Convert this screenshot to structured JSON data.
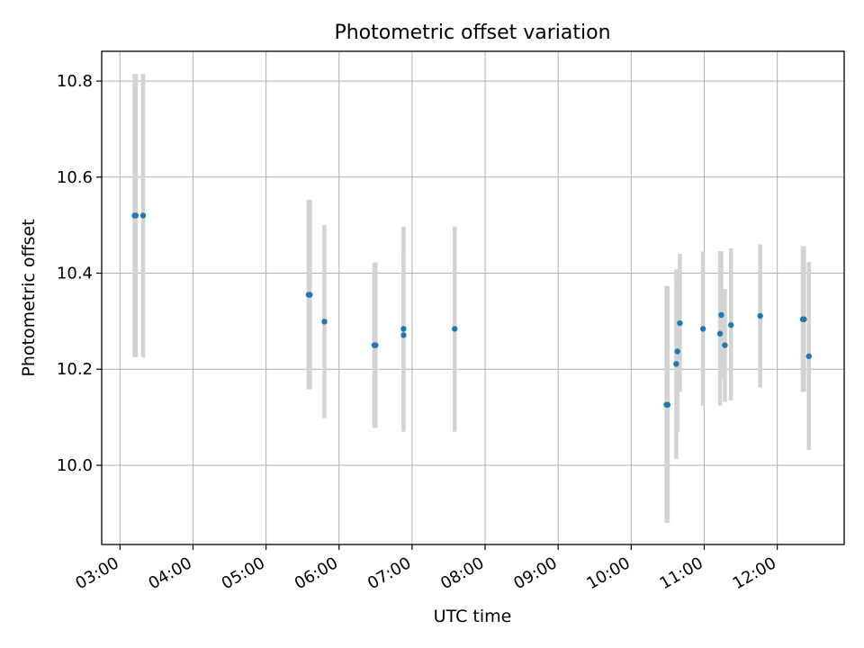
{
  "chart_data": {
    "type": "scatter",
    "title": "Photometric offset variation",
    "xlabel": "UTC time",
    "ylabel": "Photometric offset",
    "grid": true,
    "xlim": [
      "02:45",
      "12:55"
    ],
    "ylim": [
      9.835,
      10.862
    ],
    "xticks": [
      "03:00",
      "04:00",
      "05:00",
      "06:00",
      "07:00",
      "08:00",
      "09:00",
      "10:00",
      "11:00",
      "12:00"
    ],
    "yticks": [
      10.0,
      10.2,
      10.4,
      10.6,
      10.8
    ],
    "errorbar_color": "#d3d3d3",
    "marker_color": "#1f77b4",
    "points": [
      {
        "x": "03:12",
        "y": 10.52,
        "low": 10.225,
        "high": 10.815
      },
      {
        "x": "03:13",
        "y": 10.52,
        "low": 10.225,
        "high": 10.815
      },
      {
        "x": "03:19",
        "y": 10.52,
        "low": 10.225,
        "high": 10.815
      },
      {
        "x": "05:35",
        "y": 10.355,
        "low": 10.158,
        "high": 10.553
      },
      {
        "x": "05:36",
        "y": 10.355,
        "low": 10.158,
        "high": 10.553
      },
      {
        "x": "05:48",
        "y": 10.299,
        "low": 10.098,
        "high": 10.5
      },
      {
        "x": "06:29",
        "y": 10.25,
        "low": 10.078,
        "high": 10.422
      },
      {
        "x": "06:30",
        "y": 10.25,
        "low": 10.078,
        "high": 10.422
      },
      {
        "x": "06:53",
        "y": 10.271,
        "low": 10.085,
        "high": 10.445
      },
      {
        "x": "06:53",
        "y": 10.284,
        "low": 10.07,
        "high": 10.497
      },
      {
        "x": "07:35",
        "y": 10.284,
        "low": 10.07,
        "high": 10.497
      },
      {
        "x": "10:29",
        "y": 10.126,
        "low": 9.88,
        "high": 10.373
      },
      {
        "x": "10:30",
        "y": 10.126,
        "low": 9.88,
        "high": 10.373
      },
      {
        "x": "10:37",
        "y": 10.211,
        "low": 10.013,
        "high": 10.408
      },
      {
        "x": "10:38",
        "y": 10.237,
        "low": 10.069,
        "high": 10.406
      },
      {
        "x": "10:40",
        "y": 10.296,
        "low": 10.153,
        "high": 10.44
      },
      {
        "x": "10:59",
        "y": 10.284,
        "low": 10.124,
        "high": 10.445
      },
      {
        "x": "11:13",
        "y": 10.274,
        "low": 10.124,
        "high": 10.446
      },
      {
        "x": "11:14",
        "y": 10.313,
        "low": 10.18,
        "high": 10.446
      },
      {
        "x": "11:17",
        "y": 10.25,
        "low": 10.132,
        "high": 10.367
      },
      {
        "x": "11:22",
        "y": 10.292,
        "low": 10.135,
        "high": 10.452
      },
      {
        "x": "11:46",
        "y": 10.311,
        "low": 10.162,
        "high": 10.46
      },
      {
        "x": "12:21",
        "y": 10.304,
        "low": 10.153,
        "high": 10.456
      },
      {
        "x": "12:22",
        "y": 10.304,
        "low": 10.153,
        "high": 10.456
      },
      {
        "x": "12:26",
        "y": 10.227,
        "low": 10.032,
        "high": 10.423
      }
    ]
  }
}
